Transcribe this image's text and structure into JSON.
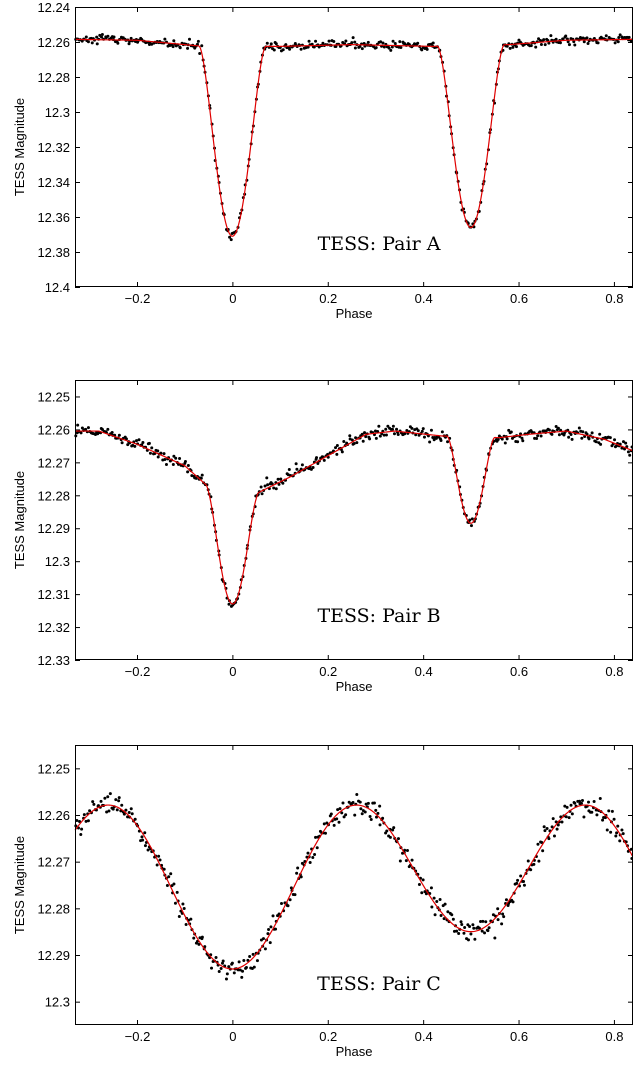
{
  "chart_data": [
    {
      "type": "scatter",
      "panel_label": "TESS: Pair A",
      "xlabel": "Phase",
      "ylabel": "TESS Magnitude",
      "xlim": [
        -0.33,
        0.84
      ],
      "ylim": [
        12.24,
        12.4
      ],
      "y_inverted": true,
      "xticks": [
        -0.2,
        0,
        0.2,
        0.4,
        0.6,
        0.8
      ],
      "xtick_labels": [
        "−0.2",
        "0",
        "0.2",
        "0.4",
        "0.6",
        "0.8"
      ],
      "yticks": [
        12.24,
        12.26,
        12.28,
        12.3,
        12.32,
        12.34,
        12.36,
        12.38,
        12.4
      ],
      "ytick_labels": [
        "12.24",
        "12.26",
        "12.28",
        "12.3",
        "12.32",
        "12.34",
        "12.36",
        "12.38",
        "12.4"
      ],
      "series": [
        {
          "style": "black dots"
        },
        {
          "style": "red line"
        }
      ],
      "model": {
        "baseline": 12.261,
        "trend": [
          [
            -0.33,
            12.2585
          ],
          [
            -0.2,
            12.259
          ],
          [
            -0.06,
            12.2625
          ],
          [
            0.1,
            12.2625
          ],
          [
            0.25,
            12.2615
          ],
          [
            0.42,
            12.2625
          ],
          [
            0.58,
            12.2615
          ],
          [
            0.7,
            12.259
          ],
          [
            0.84,
            12.2585
          ]
        ],
        "eclipses": [
          {
            "phase": 0.0,
            "depth": 12.371,
            "half_width": 0.07,
            "shape": 1.8
          },
          {
            "phase": 0.5,
            "depth": 12.366,
            "half_width": 0.07,
            "shape": 1.8
          }
        ],
        "scatter": 0.0012
      },
      "colors": {
        "points": "#000000",
        "fit": "#e00000"
      }
    },
    {
      "type": "scatter",
      "panel_label": "TESS: Pair B",
      "xlabel": "Phase",
      "ylabel": "TESS Magnitude",
      "xlim": [
        -0.33,
        0.84
      ],
      "ylim": [
        12.245,
        12.33
      ],
      "y_inverted": true,
      "xticks": [
        -0.2,
        0,
        0.2,
        0.4,
        0.6,
        0.8
      ],
      "xtick_labels": [
        "−0.2",
        "0",
        "0.2",
        "0.4",
        "0.6",
        "0.8"
      ],
      "yticks": [
        12.25,
        12.26,
        12.27,
        12.28,
        12.29,
        12.3,
        12.31,
        12.32,
        12.33
      ],
      "ytick_labels": [
        "12.25",
        "12.26",
        "12.27",
        "12.28",
        "12.29",
        "12.3",
        "12.31",
        "12.32",
        "12.33"
      ],
      "series": [
        {
          "style": "black dots"
        },
        {
          "style": "red line"
        }
      ],
      "model": {
        "trend": [
          [
            -0.33,
            12.2605
          ],
          [
            -0.28,
            12.2605
          ],
          [
            -0.2,
            12.2645
          ],
          [
            -0.1,
            12.271
          ],
          [
            -0.05,
            12.2775
          ],
          [
            0.05,
            12.2795
          ],
          [
            0.12,
            12.2745
          ],
          [
            0.2,
            12.268
          ],
          [
            0.28,
            12.2615
          ],
          [
            0.34,
            12.2605
          ],
          [
            0.44,
            12.262
          ],
          [
            0.56,
            12.2625
          ],
          [
            0.62,
            12.2615
          ],
          [
            0.7,
            12.2605
          ],
          [
            0.78,
            12.263
          ],
          [
            0.84,
            12.2665
          ]
        ],
        "eclipses": [
          {
            "phase": 0.0,
            "depth": 12.313,
            "half_width": 0.055,
            "shape": 1.8
          },
          {
            "phase": 0.5,
            "depth": 12.2885,
            "half_width": 0.05,
            "shape": 1.8
          }
        ],
        "scatter": 0.0009
      },
      "colors": {
        "points": "#000000",
        "fit": "#e00000"
      }
    },
    {
      "type": "scatter",
      "panel_label": "TESS: Pair C",
      "xlabel": "Phase",
      "ylabel": "TESS Magnitude",
      "xlim": [
        -0.33,
        0.84
      ],
      "ylim": [
        12.245,
        12.305
      ],
      "y_inverted": true,
      "xticks": [
        -0.2,
        0,
        0.2,
        0.4,
        0.6,
        0.8
      ],
      "xtick_labels": [
        "−0.2",
        "0",
        "0.2",
        "0.4",
        "0.6",
        "0.8"
      ],
      "yticks": [
        12.25,
        12.26,
        12.27,
        12.28,
        12.29,
        12.3
      ],
      "ytick_labels": [
        "12.25",
        "12.26",
        "12.27",
        "12.28",
        "12.29",
        "12.3"
      ],
      "series": [
        {
          "style": "black dots"
        },
        {
          "style": "red line"
        }
      ],
      "model": {
        "sinusoid": {
          "mean": 12.2735,
          "amp_main": 0.0155,
          "amp_diff": 0.004,
          "max_mag": 12.2575
        },
        "minima": [
          {
            "phase": 0.0,
            "mag": 12.2915
          },
          {
            "phase": 0.5,
            "mag": 12.2835
          }
        ],
        "maxima": [
          {
            "phase": -0.25,
            "mag": 12.2575
          },
          {
            "phase": 0.25,
            "mag": 12.2575
          },
          {
            "phase": 0.75,
            "mag": 12.2575
          }
        ],
        "scatter": 0.0012
      },
      "colors": {
        "points": "#000000",
        "fit": "#e00000"
      }
    }
  ]
}
